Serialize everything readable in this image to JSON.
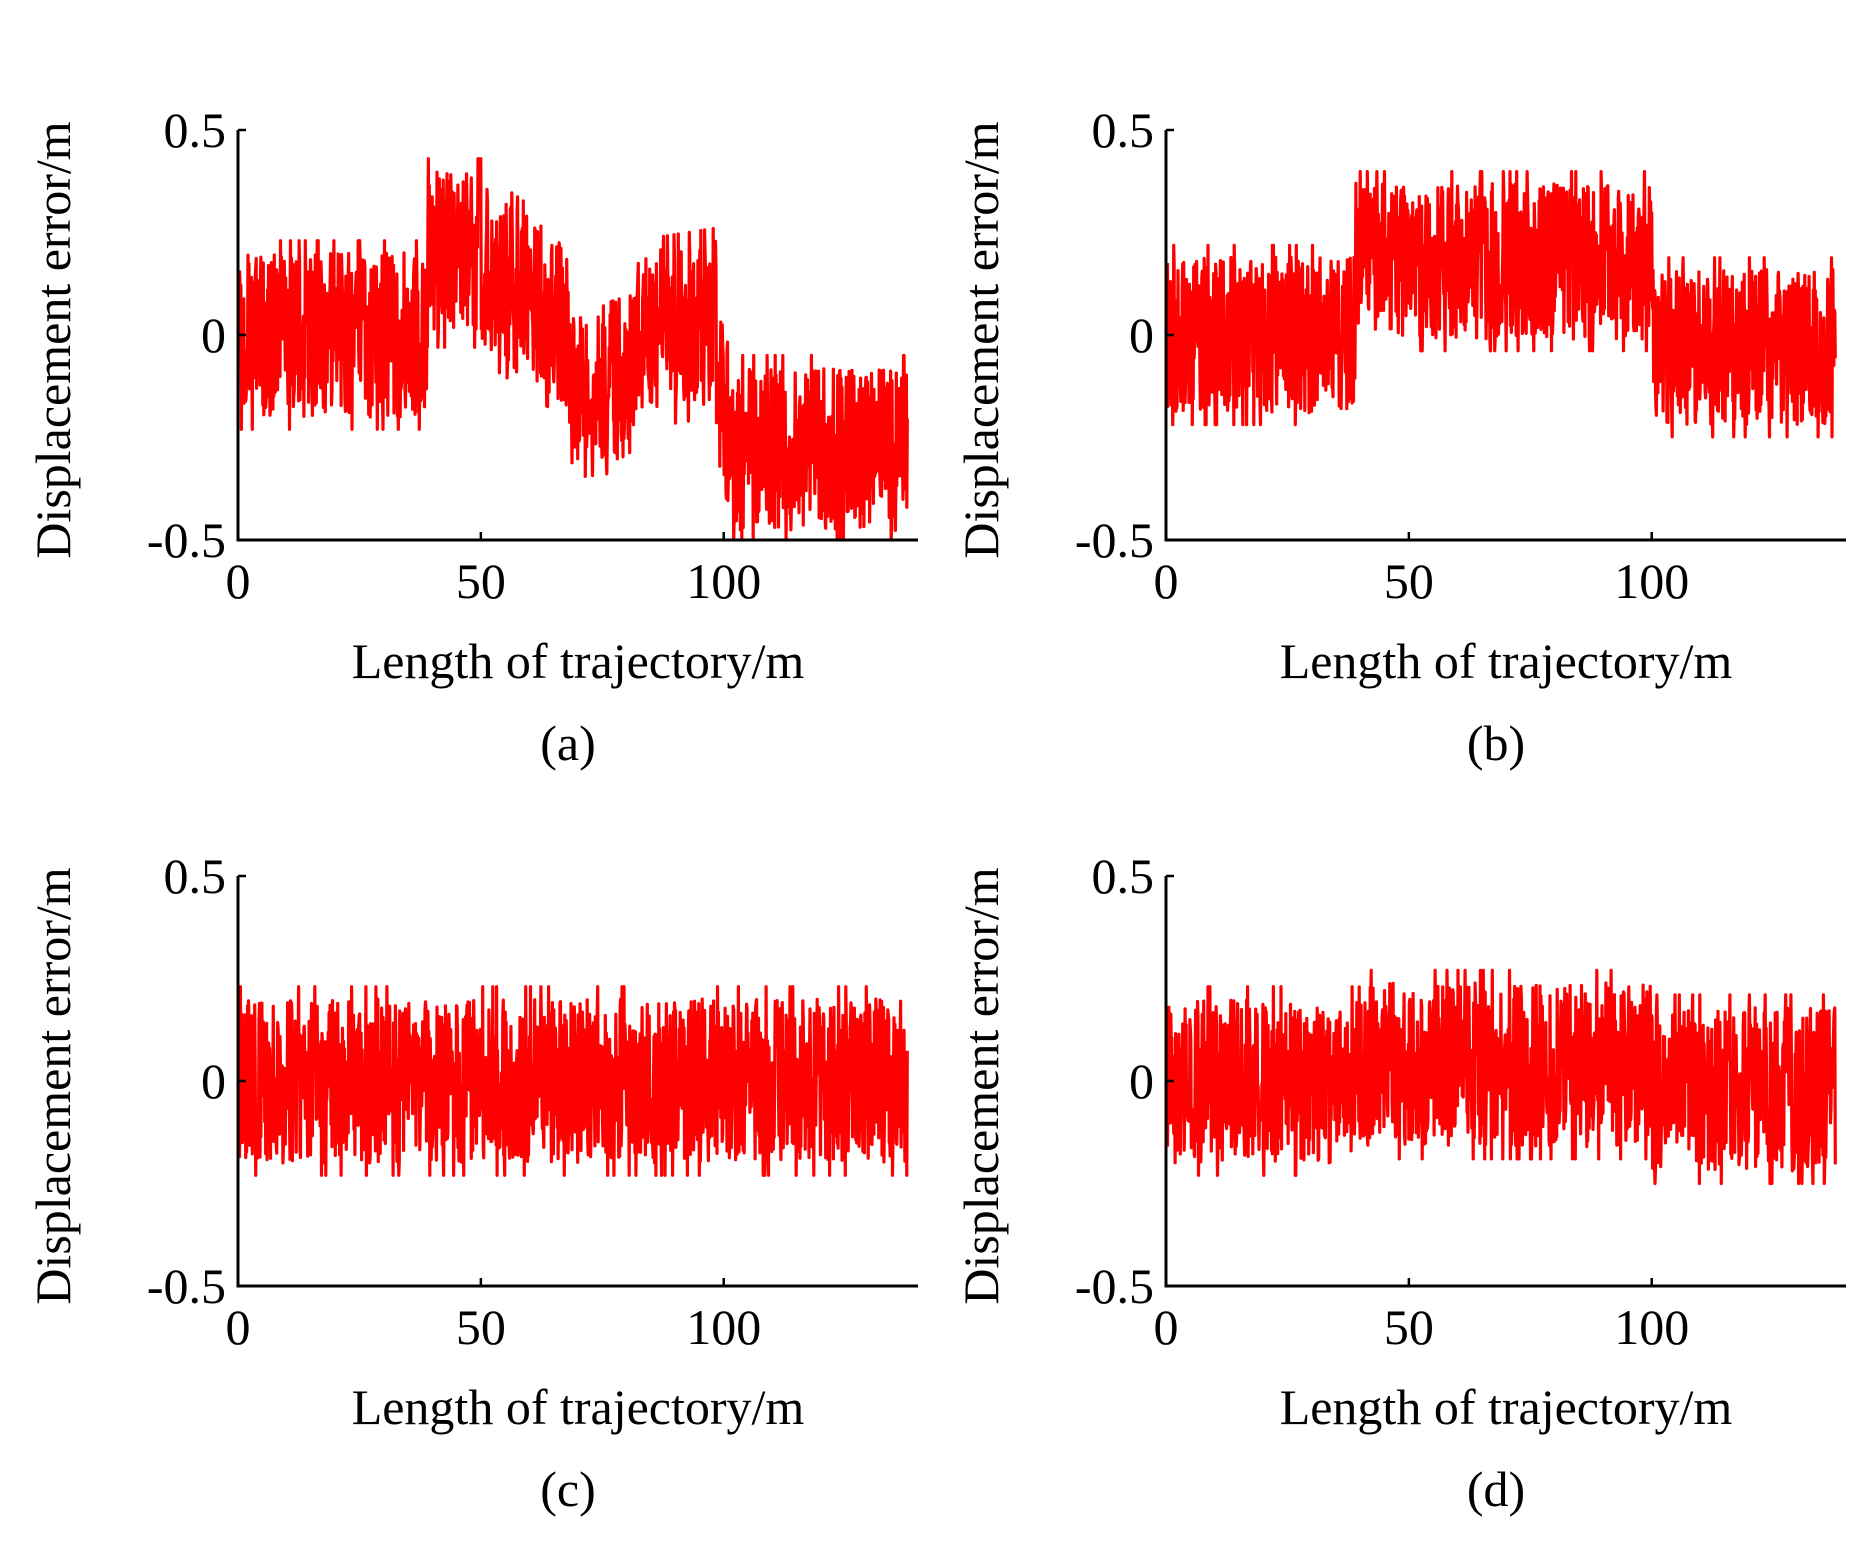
{
  "figure": {
    "panel_count": 4,
    "line_color": "#ff0000",
    "axis_color": "#000000"
  },
  "chart_data": [
    {
      "type": "line",
      "caption": "(a)",
      "title": "",
      "xlabel": "Length of trajectory/m",
      "ylabel": "Displacement error/m",
      "xlim": [
        0,
        140
      ],
      "ylim": [
        -0.5,
        0.5
      ],
      "xticks": [
        0,
        50,
        100
      ],
      "xtick_labels": [
        "0",
        "50",
        "100"
      ],
      "yticks": [
        0.5,
        0,
        -0.5
      ],
      "ytick_labels": [
        "0.5",
        "0",
        "-0.5"
      ],
      "grid": false,
      "series": [
        {
          "name": "displacement error",
          "color": "#ff0000",
          "noise_amplitude": 0.2,
          "segments": [
            {
              "x": [
                0,
                39
              ],
              "center": [
                0.0,
                0.0
              ]
            },
            {
              "x": [
                39,
                50
              ],
              "center": [
                0.2,
                0.2
              ]
            },
            {
              "x": [
                50,
                68
              ],
              "center": [
                0.17,
                0.02
              ]
            },
            {
              "x": [
                68,
                82
              ],
              "center": [
                -0.12,
                -0.1
              ]
            },
            {
              "x": [
                82,
                98
              ],
              "center": [
                0.0,
                0.03
              ]
            },
            {
              "x": [
                98,
                101
              ],
              "center": [
                0.03,
                -0.27
              ]
            },
            {
              "x": [
                101,
                140
              ],
              "center": [
                -0.28,
                -0.28
              ]
            }
          ]
        }
      ]
    },
    {
      "type": "line",
      "caption": "(b)",
      "title": "",
      "xlabel": "Length of trajectory/m",
      "ylabel": "Displacement error/m",
      "xlim": [
        0,
        140
      ],
      "ylim": [
        -0.5,
        0.5
      ],
      "xticks": [
        0,
        50,
        100
      ],
      "xtick_labels": [
        "0",
        "50",
        "100"
      ],
      "yticks": [
        0.5,
        0,
        -0.5
      ],
      "ytick_labels": [
        "0.5",
        "0",
        "-0.5"
      ],
      "grid": false,
      "series": [
        {
          "name": "displacement error",
          "color": "#ff0000",
          "noise_amplitude": 0.19,
          "segments": [
            {
              "x": [
                0,
                39
              ],
              "center": [
                0.0,
                0.0
              ]
            },
            {
              "x": [
                39,
                100
              ],
              "center": [
                0.18,
                0.18
              ]
            },
            {
              "x": [
                100,
                140
              ],
              "center": [
                -0.03,
                -0.03
              ]
            }
          ]
        }
      ]
    },
    {
      "type": "line",
      "caption": "(c)",
      "title": "",
      "xlabel": "Length of trajectory/m",
      "ylabel": "Displacement error/m",
      "xlim": [
        0,
        140
      ],
      "ylim": [
        -0.5,
        0.5
      ],
      "xticks": [
        0,
        50,
        100
      ],
      "xtick_labels": [
        "0",
        "50",
        "100"
      ],
      "yticks": [
        0.5,
        0,
        -0.5
      ],
      "ytick_labels": [
        "0.5",
        "0",
        "-0.5"
      ],
      "grid": false,
      "series": [
        {
          "name": "displacement error",
          "color": "#ff0000",
          "noise_amplitude": 0.2,
          "segments": [
            {
              "x": [
                0,
                140
              ],
              "center": [
                0.0,
                0.0
              ]
            }
          ]
        }
      ]
    },
    {
      "type": "line",
      "caption": "(d)",
      "title": "",
      "xlabel": "Length of trajectory/m",
      "ylabel": "Displacement error/m",
      "xlim": [
        0,
        140
      ],
      "ylim": [
        -0.5,
        0.5
      ],
      "xticks": [
        0,
        50,
        100
      ],
      "xtick_labels": [
        "0",
        "50",
        "100"
      ],
      "yticks": [
        0.5,
        0,
        -0.5
      ],
      "ytick_labels": [
        "0.5",
        "0",
        "-0.5"
      ],
      "grid": false,
      "series": [
        {
          "name": "displacement error",
          "color": "#ff0000",
          "noise_amplitude": 0.2,
          "segments": [
            {
              "x": [
                0,
                39
              ],
              "center": [
                0.0,
                0.0
              ]
            },
            {
              "x": [
                39,
                100
              ],
              "center": [
                0.04,
                0.04
              ]
            },
            {
              "x": [
                100,
                140
              ],
              "center": [
                -0.02,
                -0.02
              ]
            }
          ]
        }
      ]
    }
  ]
}
